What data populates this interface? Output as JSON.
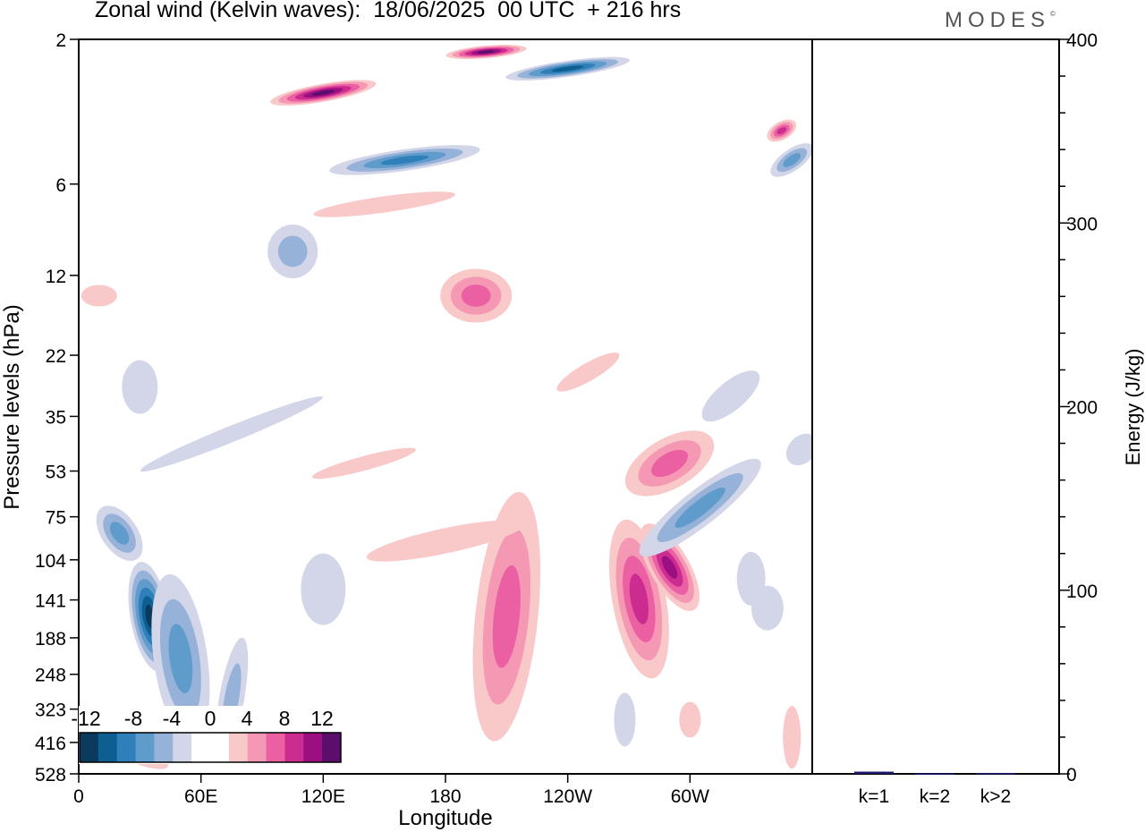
{
  "title": "Zonal wind (Kelvin waves):  18/06/2025  00 UTC  + 216 hrs",
  "logo": "MODES",
  "colors": {
    "neg": [
      "#0b3b5c",
      "#0d5f91",
      "#2f7fba",
      "#5f9bcb",
      "#97b2d8",
      "#d3d6e8"
    ],
    "pos": [
      "#f9c8c8",
      "#f598b4",
      "#eb5fa3",
      "#cc2c90",
      "#9c0f82",
      "#5c0e6c"
    ]
  },
  "chart_data": [
    {
      "type": "heatmap",
      "title": "Zonal wind (Kelvin waves):  18/06/2025  00 UTC  + 216 hrs",
      "xlabel": "Longitude",
      "ylabel": "Pressure levels (hPa)",
      "x_ticks": [
        {
          "lon": 0,
          "label": "0"
        },
        {
          "lon": 60,
          "label": "60E"
        },
        {
          "lon": 120,
          "label": "120E"
        },
        {
          "lon": 180,
          "label": "180"
        },
        {
          "lon": 240,
          "label": "120W"
        },
        {
          "lon": 300,
          "label": "60W"
        }
      ],
      "xlim": [
        0,
        360
      ],
      "y_levels": [
        2,
        6,
        12,
        22,
        35,
        53,
        75,
        104,
        141,
        188,
        248,
        323,
        416,
        528
      ],
      "y_scale": "log",
      "colorbar": {
        "labels": [
          "-12",
          "-8",
          "-4",
          "0",
          "4",
          "8",
          "12"
        ],
        "boundaries": [
          -14,
          -12,
          -10,
          -8,
          -6,
          -4,
          -2,
          2,
          4,
          6,
          8,
          10,
          12,
          14
        ]
      },
      "features": [
        {
          "lon": 35,
          "p": 160,
          "value": -12
        },
        {
          "lon": 50,
          "p": 220,
          "value": -6
        },
        {
          "lon": 75,
          "p": 300,
          "value": -4
        },
        {
          "lon": 20,
          "p": 85,
          "value": -6
        },
        {
          "lon": 160,
          "p": 5,
          "value": -8
        },
        {
          "lon": 240,
          "p": 2.5,
          "value": -10
        },
        {
          "lon": 120,
          "p": 3,
          "value": 12
        },
        {
          "lon": 200,
          "p": 2.2,
          "value": 12
        },
        {
          "lon": 210,
          "p": 160,
          "value": 6
        },
        {
          "lon": 275,
          "p": 140,
          "value": 8
        },
        {
          "lon": 290,
          "p": 110,
          "value": 9
        },
        {
          "lon": 305,
          "p": 70,
          "value": -5
        },
        {
          "lon": 290,
          "p": 50,
          "value": 5
        },
        {
          "lon": 195,
          "p": 14,
          "value": 6
        },
        {
          "lon": 105,
          "p": 10,
          "value": -4
        },
        {
          "lon": 350,
          "p": 5,
          "value": -5
        },
        {
          "lon": 345,
          "p": 4,
          "value": 7
        }
      ]
    },
    {
      "type": "bar",
      "ylabel": "Energy (J/kg)",
      "ylim": [
        0,
        400
      ],
      "y_ticks": [
        0,
        100,
        200,
        300,
        400
      ],
      "categories": [
        "k=1",
        "k=2",
        "k>2"
      ],
      "values": [
        1.2,
        0.3,
        0.5
      ]
    }
  ]
}
